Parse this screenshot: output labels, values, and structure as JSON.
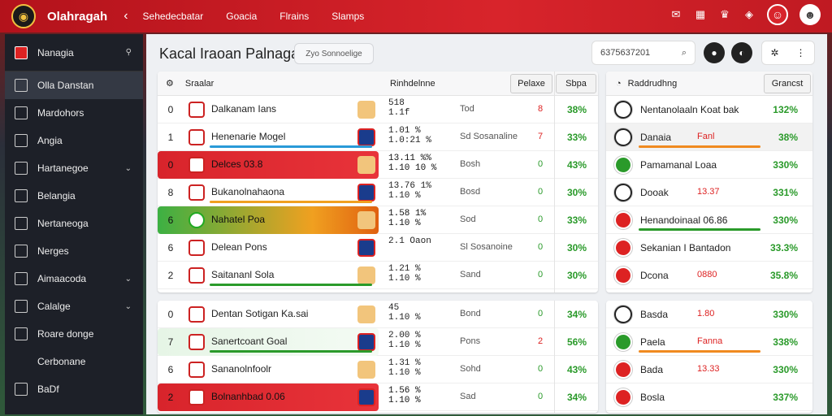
{
  "app": {
    "title": "Olahragah",
    "back_glyph": "‹"
  },
  "nav": [
    "Sehedecbatar",
    "Goacia",
    "Flrains",
    "Slamps"
  ],
  "sidebar": {
    "items": [
      {
        "label": "Nanagia",
        "icon": "flag-icon",
        "active": false,
        "chevron": false
      },
      {
        "label": "Olla Danstan",
        "icon": "home-icon",
        "active": true,
        "chevron": false
      },
      {
        "label": "Mardohors",
        "icon": "grid-icon",
        "active": false,
        "chevron": false
      },
      {
        "label": "Angia",
        "icon": "grid-icon",
        "active": false,
        "chevron": false
      },
      {
        "label": "Hartanegoe",
        "icon": "list-icon",
        "active": false,
        "chevron": true
      },
      {
        "label": "Belangia",
        "icon": "chart-icon",
        "active": false,
        "chevron": false
      },
      {
        "label": "Nertaneoga",
        "icon": "grid-icon",
        "active": false,
        "chevron": false
      },
      {
        "label": "Nerges",
        "icon": "grid-icon",
        "active": false,
        "chevron": false
      },
      {
        "label": "Aimaacoda",
        "icon": "list-icon",
        "active": false,
        "chevron": true
      },
      {
        "label": "Calalge",
        "icon": "calendar-icon",
        "active": false,
        "chevron": true
      },
      {
        "label": "Roare donge",
        "icon": "box-icon",
        "active": false,
        "chevron": false
      },
      {
        "label": "Cerbonane",
        "icon": "",
        "active": false,
        "chevron": false
      },
      {
        "label": "BaDf",
        "icon": "user-icon",
        "active": false,
        "chevron": false
      }
    ]
  },
  "page": {
    "title": "Kacal Iraoan Palnagai",
    "chip": "Zyo Sonnoelige",
    "search": "6375637201"
  },
  "standings": {
    "header": {
      "col1": "Sraalar",
      "col2": "Rinhdelnne",
      "btn1": "Pelaxe",
      "btn2": "Sbpa"
    },
    "rows": [
      {
        "rank": "0",
        "team": "Dalkanam Ians",
        "score": "518\n1.1f",
        "stat": "Tod",
        "dot": "8",
        "pct": "38%",
        "style": "plain",
        "bar": ""
      },
      {
        "rank": "1",
        "team": "Henenarie Mogel",
        "score": "1.01 %\n1.0:21 %",
        "stat": "Sd Sosanaline",
        "dot": "7",
        "pct": "33%",
        "style": "plain",
        "bar": "#2a9ad8"
      },
      {
        "rank": "0",
        "team": "Delces 03.8",
        "score": "13.11 %%\n1.10 10 %",
        "stat": "Bosh",
        "dot": "0",
        "pct": "43%",
        "style": "red",
        "bar": ""
      },
      {
        "rank": "8",
        "team": "Bukanolnahaona",
        "score": "13.76 1%\n1.10 %",
        "stat": "Bosd",
        "dot": "0",
        "pct": "30%",
        "style": "plain",
        "bar": "#f0a020"
      },
      {
        "rank": "6",
        "team": "Nahatel Poa",
        "score": "1.58 1%\n1.10 %",
        "stat": "Sod",
        "dot": "0",
        "pct": "33%",
        "style": "green",
        "bar": ""
      },
      {
        "rank": "6",
        "team": "Delean Pons",
        "score": "2.1 Oaon",
        "stat": "Sl Sosanoine",
        "dot": "0",
        "pct": "30%",
        "style": "plain",
        "bar": ""
      },
      {
        "rank": "2",
        "team": "Saitananl Sola",
        "score": "1.21 %\n1.10 %",
        "stat": "Sand",
        "dot": "0",
        "pct": "30%",
        "style": "plain",
        "bar": "#2a9a2a"
      }
    ]
  },
  "standings2": {
    "rows": [
      {
        "rank": "0",
        "team": "Dentan Sotigan Ka.sai",
        "score": "45\n1.10 %",
        "stat": "Bond",
        "dot": "0",
        "pct": "34%",
        "style": "plain",
        "bar": ""
      },
      {
        "rank": "7",
        "team": "Sanertcoant Goal",
        "score": "2.00 %\n1.10 %",
        "stat": "Pons",
        "dot": "2",
        "pct": "56%",
        "style": "lightgreen",
        "bar": "#2a9a2a"
      },
      {
        "rank": "6",
        "team": "Sananolnfoolr",
        "score": "1.31 %\n1.10 %",
        "stat": "Sohd",
        "dot": "0",
        "pct": "43%",
        "style": "plain",
        "bar": ""
      },
      {
        "rank": "2",
        "team": "Bolnanhbad 0.06",
        "score": "1.56 %\n1.10 %",
        "stat": "Sad",
        "dot": "0",
        "pct": "34%",
        "style": "red",
        "bar": ""
      }
    ]
  },
  "ranking": {
    "header": {
      "title": "Raddrudhng",
      "btn": "Grancst"
    },
    "rows": [
      {
        "team": "Nentanolaaln Koat bak",
        "sub": "",
        "pct": "132%",
        "crest": "w",
        "bar": ""
      },
      {
        "team": "Danaia",
        "sub": "Fanl",
        "pct": "38%",
        "crest": "w",
        "bar": "#f08a20"
      },
      {
        "team": "Pamamanal Loaa",
        "sub": "",
        "pct": "330%",
        "crest": "g",
        "bar": ""
      },
      {
        "team": "Dooak",
        "sub": "13.37",
        "pct": "331%",
        "crest": "w",
        "bar": ""
      },
      {
        "team": "Henandoinaal 06.86",
        "sub": "",
        "pct": "330%",
        "crest": "r",
        "bar": "#2a9a2a"
      },
      {
        "team": "Sekanian I Bantadon",
        "sub": "",
        "pct": "33.3%",
        "crest": "r",
        "bar": ""
      },
      {
        "team": "Dcona",
        "sub": "0880",
        "pct": "35.8%",
        "crest": "r",
        "bar": ""
      }
    ]
  },
  "ranking2": {
    "rows": [
      {
        "team": "Basda",
        "sub": "1.80",
        "pct": "330%",
        "crest": "w",
        "bar": ""
      },
      {
        "team": "Paela",
        "sub": "Fanna",
        "pct": "338%",
        "crest": "g",
        "bar": "#f08a20"
      },
      {
        "team": "Bada",
        "sub": "13.33",
        "pct": "330%",
        "crest": "r",
        "bar": ""
      },
      {
        "team": "Bosla",
        "sub": "",
        "pct": "337%",
        "crest": "r",
        "bar": ""
      }
    ]
  },
  "colors": {
    "brand_red": "#d8242b",
    "green": "#2a9a2a",
    "orange": "#f08a20"
  }
}
